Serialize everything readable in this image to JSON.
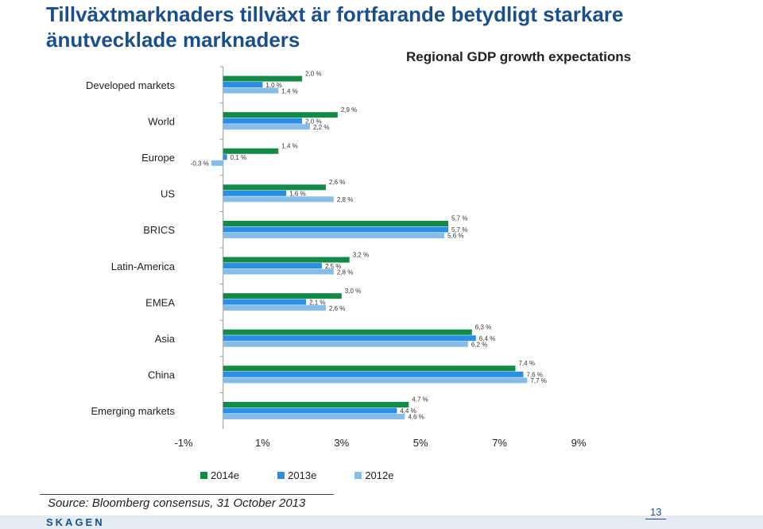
{
  "slide": {
    "title": "Tillväxtmarknaders tillväxt är fortfarande betydligt starkare änutvecklade marknaders",
    "source": "Source: Bloomberg consensus, 31 October 2013",
    "logo": "SKAGEN",
    "page_number": "13"
  },
  "chart_data": {
    "type": "bar",
    "orientation": "horizontal",
    "title": "Regional GDP growth expectations",
    "categories": [
      "Developed markets",
      "World",
      "Europe",
      "US",
      "BRICS",
      "Latin-America",
      "EMEA",
      "Asia",
      "China",
      "Emerging markets"
    ],
    "series": [
      {
        "name": "2014e",
        "color": "#138a45",
        "values": [
          2.0,
          2.9,
          1.4,
          2.6,
          5.7,
          3.2,
          3.0,
          6.3,
          7.4,
          4.7
        ],
        "labels": [
          "2,0 %",
          "2,9 %",
          "1,4 %",
          "2,6 %",
          "5,7 %",
          "3,2 %",
          "3,0 %",
          "6,3 %",
          "7,4 %",
          "4,7 %"
        ]
      },
      {
        "name": "2013e",
        "color": "#2b8ee6",
        "values": [
          1.0,
          2.0,
          0.1,
          1.6,
          5.7,
          2.5,
          2.1,
          6.4,
          7.6,
          4.4
        ],
        "labels": [
          "1,0 %",
          "2,0 %",
          "0,1 %",
          "1,6 %",
          "5,7 %",
          "2,5 %",
          "2,1 %",
          "6,4 %",
          "7,6 %",
          "4,4 %"
        ]
      },
      {
        "name": "2012e",
        "color": "#86bde8",
        "values": [
          1.4,
          2.2,
          -0.3,
          2.8,
          5.6,
          2.8,
          2.6,
          6.2,
          7.7,
          4.6
        ],
        "labels": [
          "1,4 %",
          "2,2 %",
          "-0,3 %",
          "2,8 %",
          "5,6 %",
          "2,8 %",
          "2,6 %",
          "6,2 %",
          "7,7 %",
          "4,6 %"
        ]
      }
    ],
    "x_ticks": [
      "-1%",
      "1%",
      "3%",
      "5%",
      "7%",
      "9%"
    ],
    "xlim": [
      -1,
      9
    ],
    "grid": false,
    "legend_position": "bottom"
  }
}
